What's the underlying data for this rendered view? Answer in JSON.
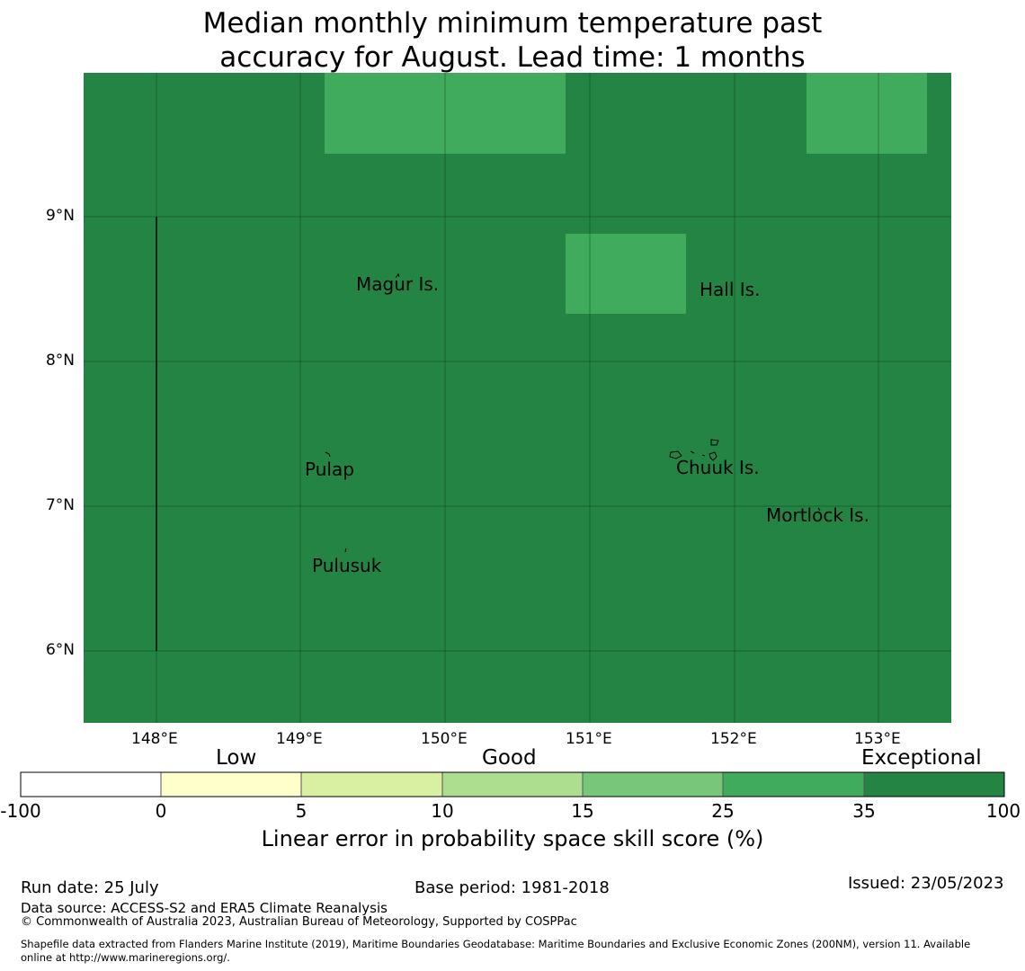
{
  "title": {
    "line1": "Median monthly minimum temperature past",
    "line2": "accuracy for August. Lead time: 1 months"
  },
  "map": {
    "background_color": "#238443",
    "highlight_color": "#41ab5d",
    "lon_ticks": [
      "148°E",
      "149°E",
      "150°E",
      "151°E",
      "152°E",
      "153°E"
    ],
    "lat_ticks": [
      "9°N",
      "8°N",
      "7°N",
      "6°N"
    ],
    "places": [
      {
        "name": "Magur Is."
      },
      {
        "name": "Hall Is."
      },
      {
        "name": "Pulap"
      },
      {
        "name": "Chuuk Is."
      },
      {
        "name": "Mortlock Is."
      },
      {
        "name": "Pulusuk"
      }
    ]
  },
  "colorbar": {
    "categories": [
      "Low",
      "Good",
      "Exceptional"
    ],
    "ticks": [
      "-100",
      "0",
      "5",
      "10",
      "15",
      "25",
      "35",
      "100"
    ],
    "colors": [
      "#ffffff",
      "#ffffcc",
      "#d9f0a3",
      "#addd8e",
      "#78c679",
      "#41ab5d",
      "#238443"
    ],
    "label": "Linear error in probability space skill score (%)"
  },
  "footer": {
    "run_date": "Run date: 25 July",
    "base_period": "Base period: 1981-2018",
    "issued": "Issued: 23/05/2023",
    "data_source": "Data source: ACCESS-S2 and ERA5 Climate Reanalysis",
    "copyright": "© Commonwealth of Australia 2023, Australian Bureau of Meteorology, Supported by COSPPac",
    "shapefile_line1": "Shapefile data extracted from Flanders Marine Institute (2019), Maritime Boundaries Geodatabase: Maritime Boundaries and Exclusive Economic Zones (200NM), version 11. Available",
    "shapefile_line2": "online at http://www.marineregions.org/."
  }
}
